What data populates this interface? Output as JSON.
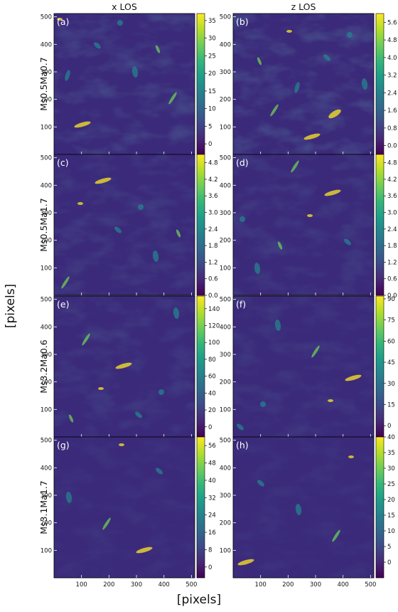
{
  "figure": {
    "shared_xlabel": "[pixels]",
    "shared_ylabel": "[pixels]",
    "column_titles": [
      "x LOS",
      "z LOS"
    ]
  },
  "colormap": {
    "name": "viridis",
    "stops": [
      "#440154",
      "#482878",
      "#3e4a89",
      "#31688e",
      "#26828e",
      "#1f9e89",
      "#35b779",
      "#6ece58",
      "#b5de2b",
      "#fde725"
    ]
  },
  "rows": [
    {
      "label": "Ms0.5Ma0.7",
      "panels": [
        {
          "tag": "(a)",
          "colorbar_ticks": [
            0,
            5,
            10,
            15,
            20,
            25,
            30,
            35
          ],
          "range": [
            -3,
            37
          ],
          "intensity": 0.3
        },
        {
          "tag": "(b)",
          "colorbar_ticks": [
            0.0,
            0.8,
            1.6,
            2.4,
            3.2,
            4.0,
            4.8,
            5.6
          ],
          "range": [
            -0.4,
            6.0
          ],
          "intensity": 0.35
        }
      ]
    },
    {
      "label": "Ms0.5Ma1.7",
      "panels": [
        {
          "tag": "(c)",
          "colorbar_ticks": [
            0.0,
            0.6,
            1.2,
            1.8,
            2.4,
            3.0,
            3.6,
            4.2,
            4.8
          ],
          "range": [
            0.0,
            5.1
          ],
          "intensity": 0.22
        },
        {
          "tag": "(d)",
          "colorbar_ticks": [
            0.0,
            0.6,
            1.2,
            1.8,
            2.4,
            3.0,
            3.6,
            4.2,
            4.8
          ],
          "range": [
            0.0,
            5.1
          ],
          "intensity": 0.2
        }
      ]
    },
    {
      "label": "Ms3.2Ma0.6",
      "panels": [
        {
          "tag": "(e)",
          "colorbar_ticks": [
            0,
            20,
            40,
            60,
            80,
            100,
            120,
            140
          ],
          "range": [
            -12,
            155
          ],
          "intensity": 0.2
        },
        {
          "tag": "(f)",
          "colorbar_ticks": [
            0,
            15,
            30,
            45,
            60,
            75,
            90
          ],
          "range": [
            -8,
            92
          ],
          "intensity": 0.16
        }
      ]
    },
    {
      "label": "Ms3.1Ma1.7",
      "panels": [
        {
          "tag": "(g)",
          "colorbar_ticks": [
            0,
            8,
            16,
            24,
            32,
            40,
            48,
            56
          ],
          "range": [
            -5,
            60
          ],
          "intensity": 0.1
        },
        {
          "tag": "(h)",
          "colorbar_ticks": [
            0,
            5,
            10,
            15,
            20,
            25,
            30,
            35,
            40
          ],
          "range": [
            -5,
            40
          ],
          "intensity": 0.1
        }
      ]
    }
  ],
  "chart_data": {
    "type": "heatmap",
    "x_ticks": [
      100,
      200,
      300,
      400,
      500
    ],
    "y_ticks": [
      100,
      200,
      300,
      400,
      500
    ],
    "xlim": [
      0,
      512
    ],
    "ylim": [
      0,
      512
    ],
    "xlabel": "[pixels]",
    "ylabel": "[pixels]"
  }
}
